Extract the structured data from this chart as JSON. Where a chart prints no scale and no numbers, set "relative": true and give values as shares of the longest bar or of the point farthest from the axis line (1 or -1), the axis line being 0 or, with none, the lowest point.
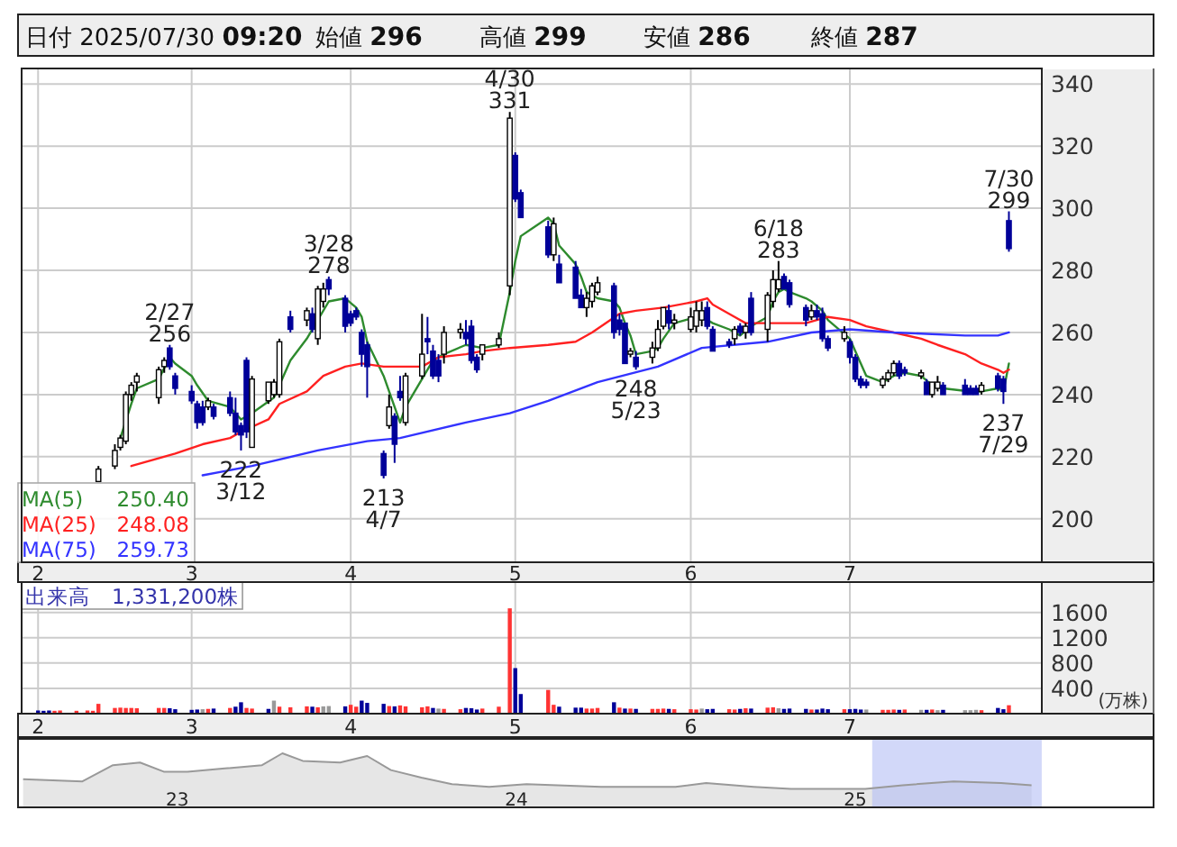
{
  "chart_data": [
    {
      "type": "candlestick",
      "annotations": [
        "日付 2025/07/30 09:20",
        "始値 296",
        "高値 299",
        "安値 286",
        "終値 287",
        {
          "text": "2/27\n256",
          "x": "2025-02-27",
          "y": 256
        },
        {
          "text": "3/28\n278",
          "x": "2025-03-28",
          "y": 278
        },
        {
          "text": "4/30\n331",
          "x": "2025-04-30",
          "y": 331
        },
        {
          "text": "6/18\n283",
          "x": "2025-06-18",
          "y": 283
        },
        {
          "text": "7/30\n299",
          "x": "2025-07-30",
          "y": 299
        },
        {
          "text": "222\n3/12",
          "x": "2025-03-12",
          "y": 222
        },
        {
          "text": "213\n4/7",
          "x": "2025-04-07",
          "y": 213
        },
        {
          "text": "248\n5/23",
          "x": "2025-05-23",
          "y": 248
        },
        {
          "text": "237\n7/29",
          "x": "2025-07-29",
          "y": 237
        }
      ],
      "x": [
        "2025-02-14",
        "2025-02-17",
        "2025-02-18",
        "2025-02-19",
        "2025-02-20",
        "2025-02-21",
        "2025-02-25",
        "2025-02-26",
        "2025-02-27",
        "2025-02-28",
        "2025-03-03",
        "2025-03-04",
        "2025-03-05",
        "2025-03-06",
        "2025-03-07",
        "2025-03-10",
        "2025-03-11",
        "2025-03-12",
        "2025-03-13",
        "2025-03-14",
        "2025-03-17",
        "2025-03-18",
        "2025-03-19",
        "2025-03-21",
        "2025-03-24",
        "2025-03-25",
        "2025-03-26",
        "2025-03-27",
        "2025-03-28",
        "2025-03-31",
        "2025-04-01",
        "2025-04-02",
        "2025-04-03",
        "2025-04-04",
        "2025-04-07",
        "2025-04-08",
        "2025-04-09",
        "2025-04-10",
        "2025-04-11",
        "2025-04-14",
        "2025-04-15",
        "2025-04-16",
        "2025-04-17",
        "2025-04-18",
        "2025-04-21",
        "2025-04-22",
        "2025-04-23",
        "2025-04-24",
        "2025-04-25",
        "2025-04-28",
        "2025-04-30",
        "2025-05-01",
        "2025-05-02",
        "2025-05-07",
        "2025-05-08",
        "2025-05-09",
        "2025-05-12",
        "2025-05-13",
        "2025-05-14",
        "2025-05-15",
        "2025-05-16",
        "2025-05-19",
        "2025-05-20",
        "2025-05-21",
        "2025-05-22",
        "2025-05-23",
        "2025-05-26",
        "2025-05-27",
        "2025-05-28",
        "2025-05-29",
        "2025-05-30",
        "2025-06-02",
        "2025-06-03",
        "2025-06-04",
        "2025-06-05",
        "2025-06-06",
        "2025-06-09",
        "2025-06-10",
        "2025-06-11",
        "2025-06-12",
        "2025-06-13",
        "2025-06-16",
        "2025-06-17",
        "2025-06-18",
        "2025-06-19",
        "2025-06-20",
        "2025-06-23",
        "2025-06-24",
        "2025-06-25",
        "2025-06-26",
        "2025-06-27",
        "2025-06-30",
        "2025-07-01",
        "2025-07-02",
        "2025-07-03",
        "2025-07-04",
        "2025-07-07",
        "2025-07-08",
        "2025-07-09",
        "2025-07-10",
        "2025-07-11",
        "2025-07-14",
        "2025-07-15",
        "2025-07-16",
        "2025-07-17",
        "2025-07-18",
        "2025-07-22",
        "2025-07-23",
        "2025-07-24",
        "2025-07-25",
        "2025-07-28",
        "2025-07-29",
        "2025-07-30"
      ],
      "ohlc": [
        [
          212,
          217,
          212,
          216
        ],
        [
          217,
          224,
          216,
          222
        ],
        [
          223,
          227,
          222,
          226
        ],
        [
          225,
          241,
          224,
          240
        ],
        [
          240,
          244,
          238,
          243
        ],
        [
          244,
          247,
          241,
          246
        ],
        [
          239,
          249,
          237,
          248
        ],
        [
          249,
          252,
          247,
          251
        ],
        [
          255,
          256,
          248,
          249
        ],
        [
          246,
          247,
          240,
          242
        ],
        [
          241,
          243,
          237,
          238
        ],
        [
          237,
          238,
          229,
          231
        ],
        [
          236,
          238,
          230,
          231
        ],
        [
          236,
          239,
          235,
          238
        ],
        [
          236,
          237,
          232,
          233
        ],
        [
          239,
          241,
          233,
          234
        ],
        [
          234,
          239,
          227,
          228
        ],
        [
          230,
          231,
          222,
          227
        ],
        [
          251,
          252,
          226,
          228
        ],
        [
          223,
          246,
          223,
          245
        ],
        [
          238,
          244,
          237,
          244
        ],
        [
          240,
          245,
          239,
          244
        ],
        [
          240,
          258,
          239,
          257
        ],
        [
          265,
          267,
          260,
          261
        ],
        [
          264,
          268,
          262,
          267
        ],
        [
          266,
          268,
          260,
          261
        ],
        [
          258,
          275,
          256,
          274
        ],
        [
          270,
          276,
          268,
          274
        ],
        [
          277,
          278,
          272,
          274
        ],
        [
          271,
          272,
          260,
          262
        ],
        [
          266,
          267,
          262,
          263
        ],
        [
          267,
          268,
          264,
          265
        ],
        [
          260,
          261,
          249,
          253
        ],
        [
          256,
          257,
          239,
          249
        ],
        [
          221,
          222,
          213,
          214
        ],
        [
          230,
          240,
          229,
          236
        ],
        [
          233,
          234,
          218,
          224
        ],
        [
          241,
          246,
          238,
          239
        ],
        [
          231,
          247,
          230,
          246
        ],
        [
          246,
          266,
          245,
          253
        ],
        [
          258,
          265,
          253,
          257
        ],
        [
          254,
          256,
          245,
          246
        ],
        [
          251,
          253,
          244,
          246
        ],
        [
          253,
          262,
          250,
          260
        ],
        [
          260,
          263,
          258,
          261
        ],
        [
          260,
          264,
          256,
          258
        ],
        [
          262,
          264,
          250,
          251
        ],
        [
          252,
          253,
          247,
          248
        ],
        [
          253,
          256,
          251,
          256
        ],
        [
          256,
          260,
          255,
          258
        ],
        [
          275,
          331,
          272,
          329
        ],
        [
          317,
          318,
          302,
          303
        ],
        [
          305,
          306,
          297,
          297
        ],
        [
          294,
          296,
          284,
          285
        ],
        [
          285,
          297,
          283,
          295
        ],
        [
          282,
          285,
          276,
          276
        ],
        [
          281,
          283,
          271,
          271
        ],
        [
          272,
          274,
          268,
          268
        ],
        [
          268,
          273,
          265,
          271
        ],
        [
          270,
          276,
          268,
          275
        ],
        [
          273,
          278,
          272,
          276
        ],
        [
          275,
          276,
          258,
          260
        ],
        [
          264,
          266,
          259,
          261
        ],
        [
          263,
          263,
          250,
          250
        ],
        [
          253,
          255,
          252,
          254
        ],
        [
          252,
          254,
          248,
          249
        ],
        [
          252,
          257,
          250,
          255
        ],
        [
          255,
          264,
          254,
          261
        ],
        [
          262,
          268,
          261,
          268
        ],
        [
          267,
          269,
          261,
          263
        ],
        [
          263,
          266,
          261,
          264
        ],
        [
          261,
          268,
          260,
          265
        ],
        [
          262,
          270,
          260,
          267
        ],
        [
          264,
          270,
          262,
          267
        ],
        [
          268,
          270,
          261,
          262
        ],
        [
          261,
          262,
          254,
          254
        ],
        [
          257,
          258,
          255,
          256
        ],
        [
          258,
          262,
          256,
          261
        ],
        [
          262,
          263,
          259,
          260
        ],
        [
          260,
          263,
          258,
          262
        ],
        [
          271,
          273,
          259,
          260
        ],
        [
          261,
          273,
          257,
          272
        ],
        [
          270,
          280,
          268,
          277
        ],
        [
          274,
          283,
          273,
          277
        ],
        [
          278,
          279,
          274,
          274
        ],
        [
          276,
          277,
          268,
          269
        ],
        [
          268,
          269,
          262,
          264
        ],
        [
          265,
          269,
          264,
          267
        ],
        [
          267,
          269,
          264,
          265
        ],
        [
          266,
          268,
          257,
          258
        ],
        [
          258,
          259,
          254,
          255
        ],
        [
          258,
          262,
          257,
          260
        ],
        [
          257,
          258,
          250,
          252
        ],
        [
          252,
          253,
          244,
          245
        ],
        [
          245,
          246,
          242,
          243
        ],
        [
          244,
          245,
          242,
          243
        ],
        [
          243,
          246,
          242,
          245
        ],
        [
          245,
          248,
          244,
          247
        ],
        [
          247,
          251,
          246,
          250
        ],
        [
          250,
          251,
          245,
          246
        ],
        [
          248,
          249,
          246,
          247
        ],
        [
          246,
          248,
          245,
          247
        ],
        [
          244,
          245,
          240,
          240
        ],
        [
          240,
          244,
          239,
          244
        ],
        [
          242,
          246,
          241,
          244
        ],
        [
          243,
          244,
          240,
          240
        ],
        [
          243,
          245,
          240,
          240
        ],
        [
          242,
          243,
          240,
          240
        ],
        [
          242,
          243,
          240,
          240
        ],
        [
          241,
          244,
          240,
          243
        ],
        [
          246,
          247,
          241,
          242
        ],
        [
          245,
          246,
          237,
          241
        ],
        [
          296,
          299,
          286,
          287
        ]
      ],
      "series": [
        {
          "name": "MA(5) 250.40",
          "type": "line",
          "color": "#2e8b2e",
          "x": [
            "2025-02-18",
            "2025-02-20",
            "2025-02-21",
            "2025-02-25",
            "2025-02-27",
            "2025-02-28",
            "2025-03-03",
            "2025-03-04",
            "2025-03-06",
            "2025-03-10",
            "2025-03-12",
            "2025-03-13",
            "2025-03-14",
            "2025-03-18",
            "2025-03-19",
            "2025-03-21",
            "2025-03-24",
            "2025-03-26",
            "2025-03-28",
            "2025-03-31",
            "2025-04-02",
            "2025-04-03",
            "2025-04-04",
            "2025-04-07",
            "2025-04-10",
            "2025-04-11",
            "2025-04-14",
            "2025-04-16",
            "2025-04-18",
            "2025-04-22",
            "2025-04-25",
            "2025-04-28",
            "2025-04-30",
            "2025-05-01",
            "2025-05-02",
            "2025-05-07",
            "2025-05-08",
            "2025-05-09",
            "2025-05-12",
            "2025-05-13",
            "2025-05-14",
            "2025-05-16",
            "2025-05-19",
            "2025-05-20",
            "2025-05-21",
            "2025-05-22",
            "2025-05-23",
            "2025-05-26",
            "2025-05-27",
            "2025-05-28",
            "2025-05-30",
            "2025-06-03",
            "2025-06-05",
            "2025-06-06",
            "2025-06-09",
            "2025-06-11",
            "2025-06-13",
            "2025-06-16",
            "2025-06-17",
            "2025-06-18",
            "2025-06-19",
            "2025-06-20",
            "2025-06-23",
            "2025-06-24",
            "2025-06-26",
            "2025-06-27",
            "2025-07-01",
            "2025-07-02",
            "2025-07-03",
            "2025-07-04",
            "2025-07-07",
            "2025-07-09",
            "2025-07-11",
            "2025-07-14",
            "2025-07-16",
            "2025-07-18",
            "2025-07-23",
            "2025-07-25",
            "2025-07-28",
            "2025-07-29",
            "2025-07-30"
          ],
          "values": [
            226,
            237,
            242,
            245,
            252,
            250,
            246,
            243,
            238,
            236,
            232,
            233,
            234,
            239,
            243,
            251,
            258,
            264,
            270,
            271,
            268,
            265,
            257,
            246,
            231,
            236,
            245,
            251,
            253,
            256,
            255,
            256,
            273,
            283,
            291,
            297,
            295,
            288,
            282,
            278,
            273,
            271,
            270,
            268,
            263,
            259,
            253,
            254,
            255,
            258,
            263,
            265,
            264,
            263,
            261,
            259,
            262,
            265,
            270,
            273,
            274,
            273,
            271,
            270,
            267,
            264,
            258,
            254,
            250,
            246,
            244,
            246,
            247,
            246,
            243,
            242,
            241,
            241,
            242,
            241,
            250
          ]
        },
        {
          "name": "MA(25) 248.08",
          "type": "line",
          "color": "#ff2020",
          "x": [
            "2025-02-20",
            "2025-02-28",
            "2025-03-05",
            "2025-03-10",
            "2025-03-12",
            "2025-03-17",
            "2025-03-19",
            "2025-03-24",
            "2025-03-27",
            "2025-03-31",
            "2025-04-03",
            "2025-04-07",
            "2025-04-10",
            "2025-04-14",
            "2025-04-17",
            "2025-04-22",
            "2025-04-25",
            "2025-04-30",
            "2025-05-07",
            "2025-05-12",
            "2025-05-15",
            "2025-05-20",
            "2025-05-23",
            "2025-05-28",
            "2025-06-03",
            "2025-06-05",
            "2025-06-06",
            "2025-06-10",
            "2025-06-12",
            "2025-06-16",
            "2025-06-23",
            "2025-06-25",
            "2025-06-27",
            "2025-07-01",
            "2025-07-04",
            "2025-07-09",
            "2025-07-14",
            "2025-07-17",
            "2025-07-22",
            "2025-07-25",
            "2025-07-28",
            "2025-07-29",
            "2025-07-30"
          ],
          "values": [
            217,
            221,
            224,
            226,
            228,
            232,
            237,
            241,
            246,
            249,
            250,
            249,
            249,
            249,
            252,
            253,
            254,
            255,
            256,
            257,
            260,
            266,
            267,
            268,
            270,
            271,
            269,
            265,
            263,
            263,
            263,
            264,
            265,
            264,
            262,
            260,
            258,
            256,
            253,
            250,
            248,
            247,
            248
          ]
        },
        {
          "name": "MA(75) 259.73",
          "type": "line",
          "color": "#3333ff",
          "x": [
            "2025-03-05",
            "2025-03-14",
            "2025-03-26",
            "2025-04-04",
            "2025-04-10",
            "2025-04-22",
            "2025-04-30",
            "2025-05-07",
            "2025-05-16",
            "2025-05-27",
            "2025-06-04",
            "2025-06-16",
            "2025-06-24",
            "2025-07-01",
            "2025-07-09",
            "2025-07-22",
            "2025-07-28",
            "2025-07-30"
          ],
          "values": [
            214,
            217,
            222,
            225,
            226,
            231,
            234,
            238,
            244,
            249,
            255,
            257,
            260,
            261,
            260,
            259,
            259,
            260
          ]
        }
      ],
      "ylim": [
        186,
        345
      ],
      "yticks": [
        200,
        220,
        240,
        260,
        280,
        300,
        320,
        340
      ],
      "xlim": [
        "2025-01-31",
        "2025-08-05"
      ],
      "xticks": [
        {
          "value": "2025-02-03",
          "label": "2"
        },
        {
          "value": "2025-03-03",
          "label": "3"
        },
        {
          "value": "2025-04-01",
          "label": "4"
        },
        {
          "value": "2025-05-01",
          "label": "5"
        },
        {
          "value": "2025-06-02",
          "label": "6"
        },
        {
          "value": "2025-07-01",
          "label": "7"
        }
      ],
      "grid": true,
      "legend": "bottom left"
    },
    {
      "type": "bar",
      "title": "出来高　1,331,200株",
      "ylabel": "(万株)",
      "x": [
        "2025-02-03",
        "2025-02-04",
        "2025-02-05",
        "2025-02-06",
        "2025-02-07",
        "2025-02-10",
        "2025-02-12",
        "2025-02-13",
        "2025-02-14",
        "2025-02-17",
        "2025-02-18",
        "2025-02-19",
        "2025-02-20",
        "2025-02-21",
        "2025-02-25",
        "2025-02-26",
        "2025-02-27",
        "2025-02-28",
        "2025-03-03",
        "2025-03-04",
        "2025-03-05",
        "2025-03-06",
        "2025-03-07",
        "2025-03-10",
        "2025-03-11",
        "2025-03-12",
        "2025-03-13",
        "2025-03-14",
        "2025-03-17",
        "2025-03-18",
        "2025-03-19",
        "2025-03-21",
        "2025-03-24",
        "2025-03-25",
        "2025-03-26",
        "2025-03-27",
        "2025-03-28",
        "2025-03-31",
        "2025-04-01",
        "2025-04-02",
        "2025-04-03",
        "2025-04-04",
        "2025-04-07",
        "2025-04-08",
        "2025-04-09",
        "2025-04-10",
        "2025-04-11",
        "2025-04-14",
        "2025-04-15",
        "2025-04-16",
        "2025-04-17",
        "2025-04-18",
        "2025-04-21",
        "2025-04-22",
        "2025-04-23",
        "2025-04-24",
        "2025-04-25",
        "2025-04-28",
        "2025-04-30",
        "2025-05-01",
        "2025-05-02",
        "2025-05-07",
        "2025-05-08",
        "2025-05-09",
        "2025-05-12",
        "2025-05-13",
        "2025-05-14",
        "2025-05-15",
        "2025-05-16",
        "2025-05-19",
        "2025-05-20",
        "2025-05-21",
        "2025-05-22",
        "2025-05-23",
        "2025-05-26",
        "2025-05-27",
        "2025-05-28",
        "2025-05-29",
        "2025-05-30",
        "2025-06-02",
        "2025-06-03",
        "2025-06-04",
        "2025-06-05",
        "2025-06-06",
        "2025-06-09",
        "2025-06-10",
        "2025-06-11",
        "2025-06-12",
        "2025-06-13",
        "2025-06-16",
        "2025-06-17",
        "2025-06-18",
        "2025-06-19",
        "2025-06-20",
        "2025-06-23",
        "2025-06-24",
        "2025-06-25",
        "2025-06-26",
        "2025-06-27",
        "2025-06-30",
        "2025-07-01",
        "2025-07-02",
        "2025-07-03",
        "2025-07-04",
        "2025-07-07",
        "2025-07-08",
        "2025-07-09",
        "2025-07-10",
        "2025-07-11",
        "2025-07-14",
        "2025-07-15",
        "2025-07-16",
        "2025-07-17",
        "2025-07-18",
        "2025-07-22",
        "2025-07-23",
        "2025-07-24",
        "2025-07-25",
        "2025-07-28",
        "2025-07-29",
        "2025-07-30"
      ],
      "values": [
        50,
        45,
        50,
        45,
        50,
        45,
        50,
        45,
        155,
        90,
        95,
        90,
        90,
        85,
        90,
        90,
        85,
        70,
        60,
        65,
        70,
        75,
        80,
        90,
        110,
        180,
        90,
        80,
        75,
        206,
        110,
        100,
        115,
        110,
        100,
        115,
        120,
        115,
        140,
        110,
        206,
        170,
        155,
        120,
        115,
        130,
        115,
        100,
        115,
        90,
        80,
        75,
        70,
        90,
        85,
        65,
        80,
        110,
        1665,
        720,
        310,
        375,
        140,
        110,
        95,
        95,
        80,
        80,
        90,
        180,
        95,
        80,
        80,
        75,
        75,
        75,
        80,
        75,
        70,
        70,
        65,
        80,
        70,
        75,
        70,
        65,
        75,
        85,
        80,
        95,
        100,
        85,
        75,
        80,
        75,
        65,
        65,
        80,
        70,
        70,
        70,
        75,
        65,
        65,
        60,
        60,
        65,
        60,
        65,
        60,
        60,
        65,
        55,
        60,
        55,
        55,
        60,
        55,
        90,
        70,
        133
      ],
      "colors": [
        "#000099",
        "#000099",
        "#000099",
        "#ff3333",
        "#ff3333",
        "#ff3333",
        "#ff3333",
        "#ff3333",
        "#ff3333",
        "#ff3333",
        "#ff3333",
        "#ff3333",
        "#ff3333",
        "#ff3333",
        "#ff3333",
        "#ff3333",
        "#000099",
        "#000099",
        "#000099",
        "#000099",
        "#999999",
        "#ff3333",
        "#000099",
        "#ff3333",
        "#000099",
        "#000099",
        "#ff3333",
        "#ff3333",
        "#000099",
        "#999999",
        "#ff3333",
        "#ff3333",
        "#ff3333",
        "#000099",
        "#ff3333",
        "#999999",
        "#999999",
        "#000099",
        "#ff3333",
        "#ff3333",
        "#000099",
        "#000099",
        "#000099",
        "#ff3333",
        "#000099",
        "#ff3333",
        "#ff3333",
        "#ff3333",
        "#ff3333",
        "#000099",
        "#999999",
        "#ff3333",
        "#ff3333",
        "#000099",
        "#000099",
        "#000099",
        "#ff3333",
        "#ff3333",
        "#ff3333",
        "#000099",
        "#000099",
        "#ff3333",
        "#ff3333",
        "#000099",
        "#000099",
        "#000099",
        "#ff3333",
        "#ff3333",
        "#ff3333",
        "#000099",
        "#ff3333",
        "#000099",
        "#ff3333",
        "#000099",
        "#ff3333",
        "#ff3333",
        "#ff3333",
        "#000099",
        "#ff3333",
        "#ff3333",
        "#ff3333",
        "#999999",
        "#000099",
        "#000099",
        "#ff3333",
        "#ff3333",
        "#000099",
        "#ff3333",
        "#000099",
        "#ff3333",
        "#ff3333",
        "#999999",
        "#000099",
        "#000099",
        "#000099",
        "#ff3333",
        "#000099",
        "#000099",
        "#000099",
        "#ff3333",
        "#000099",
        "#000099",
        "#000099",
        "#999999",
        "#ff3333",
        "#ff3333",
        "#ff3333",
        "#000099",
        "#ff3333",
        "#999999",
        "#000099",
        "#ff3333",
        "#999999",
        "#000099",
        "#999999",
        "#999999",
        "#999999",
        "#ff3333",
        "#000099",
        "#000099",
        "#ff3333"
      ],
      "ylim": [
        0,
        2080
      ],
      "yticks": [
        400,
        800,
        1200,
        1600
      ],
      "xlim": [
        "2025-01-31",
        "2025-08-05"
      ],
      "xticks": [
        {
          "value": "2025-02-03",
          "label": "2"
        },
        {
          "value": "2025-03-03",
          "label": "3"
        },
        {
          "value": "2025-04-01",
          "label": "4"
        },
        {
          "value": "2025-05-01",
          "label": "5"
        },
        {
          "value": "2025-06-02",
          "label": "6"
        },
        {
          "value": "2025-07-01",
          "label": "7"
        }
      ],
      "grid": true
    },
    {
      "type": "area",
      "relative": true,
      "color": "#999999",
      "x": [
        2022.545,
        2022.72,
        2022.81,
        2022.89,
        2022.96,
        2023.03,
        2023.14,
        2023.25,
        2023.31,
        2023.37,
        2023.48,
        2023.56,
        2023.63,
        2023.72,
        2023.81,
        2023.92,
        2024.03,
        2024.25,
        2024.47,
        2024.56,
        2024.7,
        2024.81,
        2024.92,
        2025.03,
        2025.14,
        2025.29,
        2025.43,
        2025.52
      ],
      "values": [
        0.52,
        0.48,
        0.78,
        0.83,
        0.66,
        0.66,
        0.72,
        0.78,
        1,
        0.86,
        0.83,
        0.95,
        0.69,
        0.55,
        0.43,
        0.38,
        0.43,
        0.38,
        0.38,
        0.45,
        0.38,
        0.34,
        0.34,
        0.34,
        0.41,
        0.48,
        0.45,
        0.41
      ],
      "xlim": [
        2022.53,
        2025.88
      ],
      "xticks": [
        {
          "value": 2023,
          "label": "23"
        },
        {
          "value": 2024,
          "label": "24"
        },
        {
          "value": 2025,
          "label": "25"
        }
      ],
      "bands": [
        {
          "axis": "x",
          "from": 2025.05,
          "to": 2025.55,
          "color": "#b4bef5"
        }
      ]
    }
  ]
}
